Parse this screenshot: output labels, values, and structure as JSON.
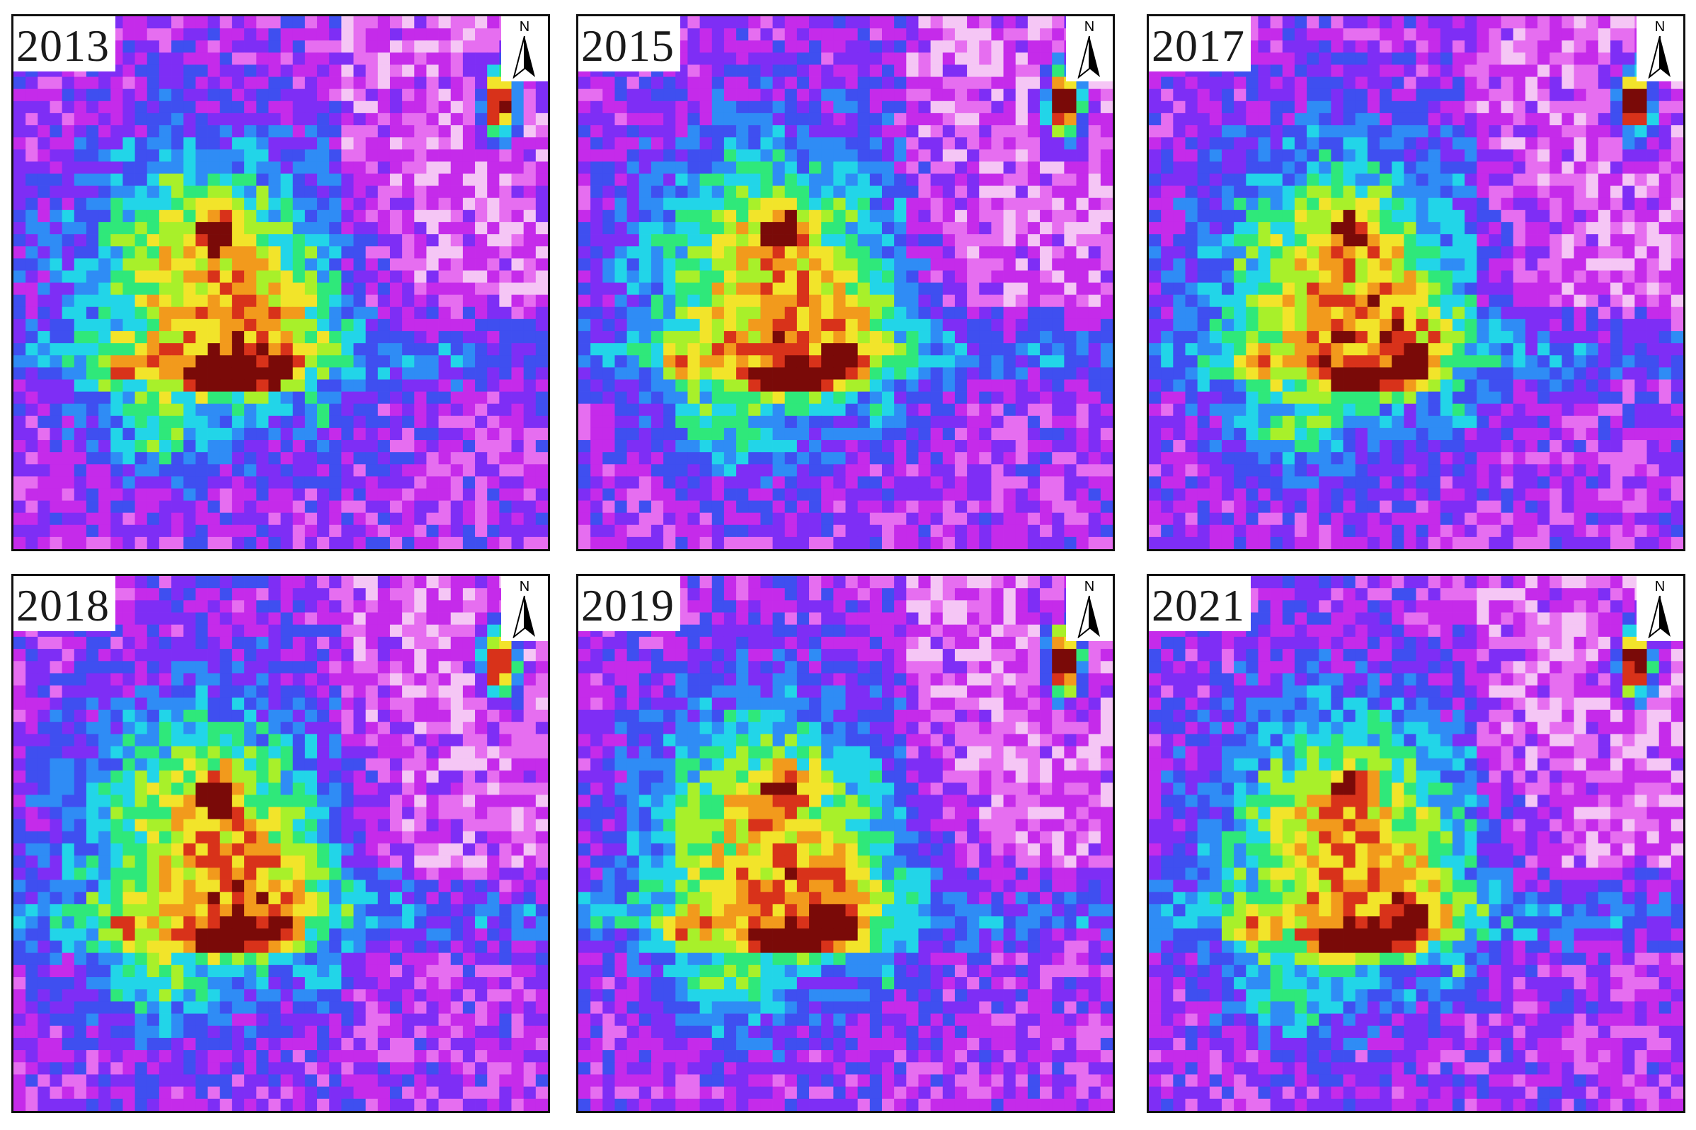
{
  "panels": [
    {
      "year": "2013",
      "north": "N"
    },
    {
      "year": "2015",
      "north": "N"
    },
    {
      "year": "2017",
      "north": "N"
    },
    {
      "year": "2018",
      "north": "N"
    },
    {
      "year": "2019",
      "north": "N"
    },
    {
      "year": "2021",
      "north": "N"
    }
  ],
  "palette": [
    "#ffffff",
    "#f5c6f5",
    "#e66ef0",
    "#c52bea",
    "#7e2ef5",
    "#3f4ff0",
    "#2f8cf5",
    "#22d5e8",
    "#2fe87a",
    "#a8f02a",
    "#f2e42a",
    "#f29a1c",
    "#d8321a",
    "#7a0a08"
  ],
  "icons": {
    "north_arrow": "north-arrow-icon"
  }
}
